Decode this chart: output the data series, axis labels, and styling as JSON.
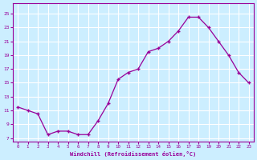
{
  "x": [
    0,
    1,
    2,
    3,
    4,
    5,
    6,
    7,
    8,
    9,
    10,
    11,
    12,
    13,
    14,
    15,
    16,
    17,
    18,
    19,
    20,
    21,
    22,
    23
  ],
  "y": [
    11.5,
    11.0,
    10.5,
    7.5,
    8.0,
    8.0,
    7.5,
    7.5,
    9.5,
    12.0,
    15.5,
    16.5,
    17.0,
    19.5,
    20.0,
    21.0,
    22.5,
    24.5,
    24.5,
    23.0,
    21.0,
    19.0,
    16.5,
    15.0
  ],
  "line_color": "#990099",
  "marker": "P",
  "marker_size": 3,
  "bg_color": "#cceeff",
  "grid_color": "#ffffff",
  "xlabel": "Windchill (Refroidissement éolien,°C)",
  "xlabel_color": "#990099",
  "ylabel_ticks": [
    7,
    9,
    11,
    13,
    15,
    17,
    19,
    21,
    23,
    25
  ],
  "xlim": [
    -0.5,
    23.5
  ],
  "ylim": [
    6.5,
    26.5
  ]
}
